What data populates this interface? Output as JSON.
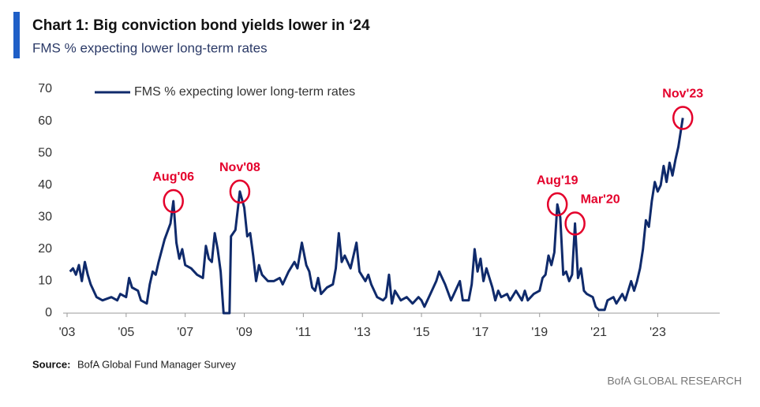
{
  "chart_data": {
    "type": "line",
    "title": "Chart 1: Big conviction bond yields lower in ‘24",
    "subtitle": "FMS % expecting lower long-term rates",
    "source_label": "Source:",
    "source_text": "BofA Global Fund Manager Survey",
    "footer": "BofA GLOBAL RESEARCH",
    "x": [
      2003.1,
      2003.2,
      2003.3,
      2003.4,
      2003.5,
      2003.6,
      2003.7,
      2003.8,
      2004.0,
      2004.2,
      2004.5,
      2004.7,
      2004.8,
      2005.0,
      2005.1,
      2005.2,
      2005.4,
      2005.5,
      2005.7,
      2005.8,
      2005.9,
      2006.0,
      2006.1,
      2006.3,
      2006.5,
      2006.6,
      2006.7,
      2006.8,
      2006.9,
      2007.0,
      2007.2,
      2007.4,
      2007.6,
      2007.7,
      2007.8,
      2007.9,
      2008.0,
      2008.1,
      2008.2,
      2008.3,
      2008.5,
      2008.55,
      2008.7,
      2008.85,
      2009.0,
      2009.1,
      2009.2,
      2009.3,
      2009.4,
      2009.5,
      2009.6,
      2009.8,
      2010.0,
      2010.2,
      2010.3,
      2010.5,
      2010.7,
      2010.8,
      2010.95,
      2011.1,
      2011.2,
      2011.3,
      2011.4,
      2011.5,
      2011.6,
      2011.8,
      2012.0,
      2012.1,
      2012.2,
      2012.3,
      2012.4,
      2012.6,
      2012.8,
      2012.9,
      2013.1,
      2013.2,
      2013.3,
      2013.5,
      2013.7,
      2013.8,
      2013.9,
      2014.0,
      2014.1,
      2014.3,
      2014.5,
      2014.7,
      2014.9,
      2015.0,
      2015.1,
      2015.3,
      2015.5,
      2015.6,
      2015.8,
      2016.0,
      2016.1,
      2016.3,
      2016.4,
      2016.6,
      2016.7,
      2016.8,
      2016.9,
      2017.0,
      2017.1,
      2017.2,
      2017.4,
      2017.5,
      2017.6,
      2017.7,
      2017.9,
      2018.0,
      2018.2,
      2018.4,
      2018.5,
      2018.6,
      2018.8,
      2019.0,
      2019.1,
      2019.2,
      2019.3,
      2019.4,
      2019.5,
      2019.6,
      2019.7,
      2019.8,
      2019.9,
      2020.0,
      2020.1,
      2020.2,
      2020.3,
      2020.4,
      2020.5,
      2020.6,
      2020.8,
      2020.9,
      2021.0,
      2021.2,
      2021.3,
      2021.5,
      2021.6,
      2021.8,
      2021.9,
      2022.1,
      2022.2,
      2022.3,
      2022.4,
      2022.5,
      2022.6,
      2022.7,
      2022.8,
      2022.9,
      2023.0,
      2023.1,
      2023.2,
      2023.3,
      2023.4,
      2023.5,
      2023.6,
      2023.7,
      2023.85
    ],
    "series": [
      {
        "name": "FMS % expecting lower long-term rates",
        "color": "#0f2a6b",
        "values": [
          13,
          14,
          12,
          15,
          10,
          16,
          12,
          9,
          5,
          4,
          5,
          4,
          6,
          5,
          11,
          8,
          7,
          4,
          3,
          9,
          13,
          12,
          16,
          23,
          28,
          35,
          22,
          17,
          20,
          15,
          14,
          12,
          11,
          21,
          17,
          16,
          25,
          20,
          13,
          0,
          0,
          24,
          26,
          38,
          33,
          24,
          25,
          18,
          10,
          15,
          12,
          10,
          10,
          11,
          9,
          13,
          16,
          14,
          22,
          15,
          13,
          8,
          7,
          11,
          6,
          8,
          9,
          14,
          25,
          16,
          18,
          14,
          22,
          13,
          10,
          12,
          9,
          5,
          4,
          5,
          12,
          3,
          7,
          4,
          5,
          3,
          5,
          4,
          2,
          6,
          10,
          13,
          9,
          4,
          6,
          10,
          4,
          4,
          9,
          20,
          13,
          17,
          10,
          14,
          8,
          4,
          7,
          5,
          6,
          4,
          7,
          4,
          7,
          4,
          6,
          7,
          11,
          12,
          18,
          15,
          19,
          34,
          30,
          12,
          13,
          10,
          12,
          28,
          11,
          14,
          7,
          6,
          5,
          2,
          1,
          1,
          4,
          5,
          3,
          6,
          4,
          10,
          7,
          10,
          14,
          20,
          29,
          27,
          35,
          41,
          38,
          40,
          46,
          41,
          47,
          43,
          48,
          52,
          61
        ]
      }
    ],
    "xlim": [
      2003,
      2025.1
    ],
    "ylim": [
      0,
      70
    ],
    "yticks": [
      0,
      10,
      20,
      30,
      40,
      50,
      60,
      70
    ],
    "xticks": [
      {
        "value": 2003,
        "label": "'03"
      },
      {
        "value": 2005,
        "label": "'05"
      },
      {
        "value": 2007,
        "label": "'07"
      },
      {
        "value": 2009,
        "label": "'09"
      },
      {
        "value": 2011,
        "label": "'11"
      },
      {
        "value": 2013,
        "label": "'13"
      },
      {
        "value": 2015,
        "label": "'15"
      },
      {
        "value": 2017,
        "label": "'17"
      },
      {
        "value": 2019,
        "label": "'19"
      },
      {
        "value": 2021,
        "label": "'21"
      },
      {
        "value": 2023,
        "label": "'23"
      }
    ],
    "annotations": [
      {
        "text": "Aug'06",
        "x": 2006.6,
        "y": 35
      },
      {
        "text": "Nov'08",
        "x": 2008.85,
        "y": 38
      },
      {
        "text": "Aug'19",
        "x": 2019.6,
        "y": 34
      },
      {
        "text": "Mar'20",
        "x": 2020.2,
        "y": 28
      },
      {
        "text": "Nov'23",
        "x": 2023.85,
        "y": 61
      }
    ],
    "annotation_color": "#e4002b",
    "legend": "top-left"
  }
}
